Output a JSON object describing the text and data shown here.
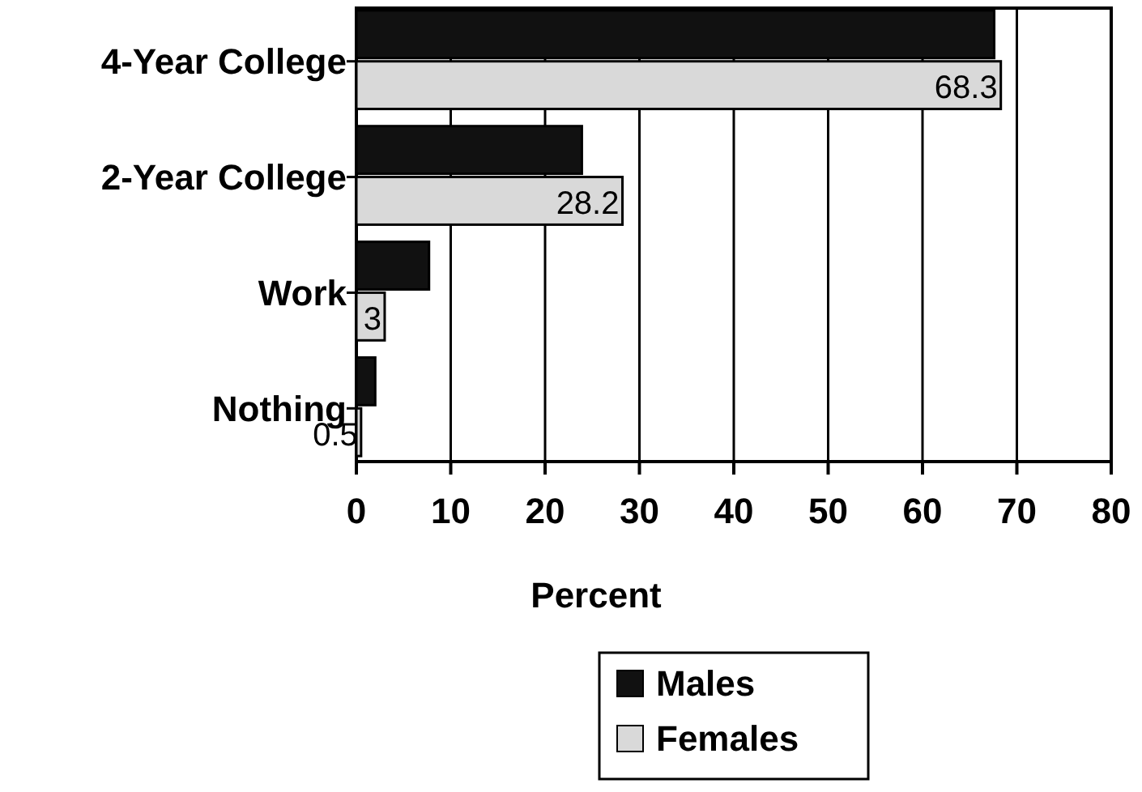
{
  "chart_data": {
    "type": "bar",
    "orientation": "horizontal",
    "categories": [
      "4-Year College",
      "2-Year College",
      "Work",
      "Nothing"
    ],
    "series": [
      {
        "name": "Males",
        "color": "#111111",
        "values": [
          67.6,
          23.9,
          7.7,
          2.0
        ]
      },
      {
        "name": "Females",
        "color": "#d9d9d9",
        "values": [
          68.3,
          28.2,
          3,
          0.5
        ],
        "value_labels": [
          "68.3",
          "28.2",
          "3",
          "0.5"
        ]
      }
    ],
    "xlabel": "Percent",
    "xlim": [
      0,
      80
    ],
    "xticks": [
      0,
      10,
      20,
      30,
      40,
      50,
      60,
      70,
      80
    ],
    "grid": "x",
    "legend": "bottom"
  }
}
